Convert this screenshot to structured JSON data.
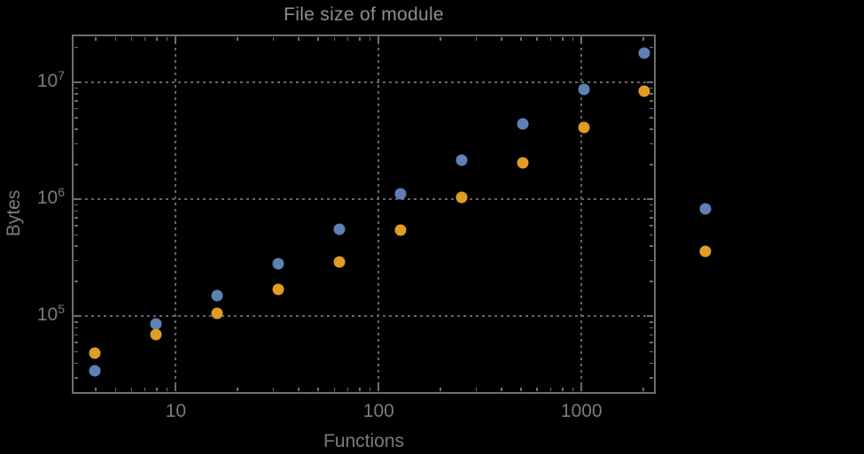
{
  "colors": {
    "background": "#000000",
    "frame": "#6e6e6e",
    "grid": "#666666",
    "title_text": "#8f8f8f",
    "label_text": "#7b7b7b",
    "series_blue": "#5E81B5",
    "series_orange": "#E19C24"
  },
  "chart_data": {
    "type": "scatter",
    "title": "File size of module",
    "xlabel": "Functions",
    "ylabel": "Bytes",
    "x_scale": "log",
    "y_scale": "log",
    "xlim": [
      3.1,
      2300
    ],
    "ylim": [
      22000,
      25000000
    ],
    "grid": true,
    "legend": "none",
    "x_ticks": [
      10,
      100,
      1000
    ],
    "x_tick_labels": [
      "10",
      "100",
      "1000"
    ],
    "y_ticks": [
      100000,
      1000000,
      10000000
    ],
    "y_tick_labels": [
      {
        "base": "10",
        "exp": "5"
      },
      {
        "base": "10",
        "exp": "6"
      },
      {
        "base": "10",
        "exp": "7"
      }
    ],
    "marker_size_px": 13,
    "series": [
      {
        "name": "blue",
        "color": "#5E81B5",
        "x": [
          4,
          8,
          16,
          32,
          64,
          128,
          256,
          512,
          1024,
          2048,
          4096
        ],
        "y": [
          34000,
          85000,
          150000,
          280000,
          550000,
          1100000,
          2150000,
          4400000,
          8600000,
          17500000,
          830000
        ]
      },
      {
        "name": "orange",
        "color": "#E19C24",
        "x": [
          4,
          8,
          16,
          32,
          64,
          128,
          256,
          512,
          1024,
          2048,
          4096
        ],
        "y": [
          48000,
          70000,
          105000,
          170000,
          290000,
          540000,
          1030000,
          2050000,
          4100000,
          8300000,
          360000
        ]
      }
    ]
  }
}
